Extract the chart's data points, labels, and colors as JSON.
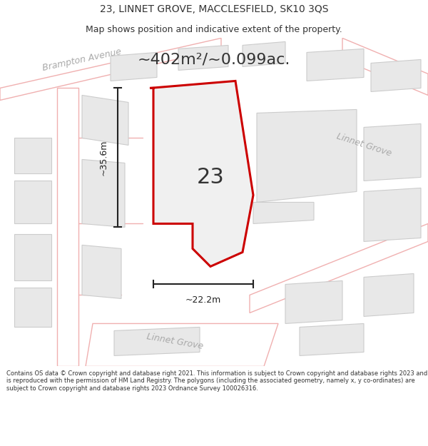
{
  "title_line1": "23, LINNET GROVE, MACCLESFIELD, SK10 3QS",
  "title_line2": "Map shows position and indicative extent of the property.",
  "area_text": "~402m²/~0.099ac.",
  "plot_number": "23",
  "dim_height": "~35.6m",
  "dim_width": "~22.2m",
  "road_label_brampton": "Brampton Avenue",
  "road_label_lg1": "Linnet Grove",
  "road_label_lg2": "Linnet Grove",
  "footer_text": "Contains OS data © Crown copyright and database right 2021. This information is subject to Crown copyright and database rights 2023 and is reproduced with the permission of HM Land Registry. The polygons (including the associated geometry, namely x, y co-ordinates) are subject to Crown copyright and database rights 2023 Ordnance Survey 100026316.",
  "bg_color": "#ffffff",
  "road_fill": "#ffffff",
  "road_edge": "#f0b0b0",
  "building_fill": "#e8e8e8",
  "building_edge": "#cccccc",
  "plot_fill": "#f0f0f0",
  "plot_edge": "#cc0000",
  "text_color": "#333333",
  "road_text_color": "#aaaaaa",
  "dim_color": "#222222",
  "title_fontsize": 10,
  "subtitle_fontsize": 9,
  "area_fontsize": 16,
  "plot_num_fontsize": 22,
  "road_label_fontsize": 9,
  "dim_fontsize": 9,
  "footer_fontsize": 6
}
